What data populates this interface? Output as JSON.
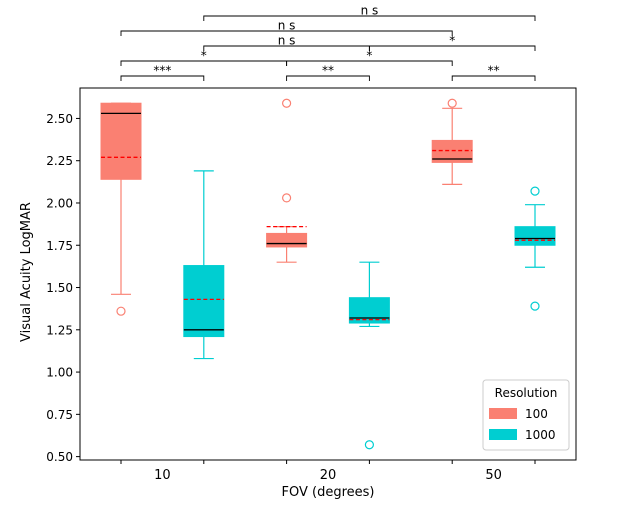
{
  "chart_data": {
    "type": "box",
    "title": "",
    "xlabel": "FOV (degrees)",
    "ylabel": "Visual Acuity LogMAR",
    "ylim": [
      0.48,
      2.68
    ],
    "yticks": [
      0.5,
      0.75,
      1.0,
      1.25,
      1.5,
      1.75,
      2.0,
      2.25,
      2.5
    ],
    "ytick_labels": [
      "0.50",
      "0.75",
      "1.00",
      "1.25",
      "1.50",
      "1.75",
      "2.00",
      "2.25",
      "2.50"
    ],
    "categories": [
      "10",
      "20",
      "50"
    ],
    "legend": {
      "title": "Resolution",
      "position": "bottom-right",
      "entries": [
        "100",
        "1000"
      ]
    },
    "colors": {
      "100": "#fa8072",
      "1000": "#00ced1",
      "median": "#000000",
      "mean": "#ff0000"
    },
    "boxes": [
      {
        "fov": "10",
        "resolution": "100",
        "whisker_low": 1.46,
        "q1": 2.14,
        "median": 2.53,
        "q3": 2.59,
        "whisker_high": 2.59,
        "mean": 2.27,
        "outliers": [
          1.36
        ]
      },
      {
        "fov": "10",
        "resolution": "1000",
        "whisker_low": 1.08,
        "q1": 1.21,
        "median": 1.25,
        "q3": 1.63,
        "whisker_high": 2.19,
        "mean": 1.43,
        "outliers": []
      },
      {
        "fov": "20",
        "resolution": "100",
        "whisker_low": 1.65,
        "q1": 1.74,
        "median": 1.76,
        "q3": 1.82,
        "whisker_high": 1.86,
        "mean": 1.86,
        "outliers": [
          2.59,
          2.03
        ]
      },
      {
        "fov": "20",
        "resolution": "1000",
        "whisker_low": 1.27,
        "q1": 1.29,
        "median": 1.32,
        "q3": 1.44,
        "whisker_high": 1.65,
        "mean": 1.31,
        "outliers": [
          0.57
        ]
      },
      {
        "fov": "50",
        "resolution": "100",
        "whisker_low": 2.11,
        "q1": 2.24,
        "median": 2.26,
        "q3": 2.37,
        "whisker_high": 2.56,
        "mean": 2.31,
        "outliers": [
          2.59
        ]
      },
      {
        "fov": "50",
        "resolution": "1000",
        "whisker_low": 1.62,
        "q1": 1.75,
        "median": 1.79,
        "q3": 1.86,
        "whisker_high": 1.99,
        "mean": 1.78,
        "outliers": [
          2.07,
          1.39
        ]
      }
    ],
    "significance": [
      {
        "from": 0,
        "to": 1,
        "level": 1,
        "label": "***"
      },
      {
        "from": 2,
        "to": 3,
        "level": 1,
        "label": "**"
      },
      {
        "from": 4,
        "to": 5,
        "level": 1,
        "label": "**"
      },
      {
        "from": 0,
        "to": 2,
        "level": 2,
        "label": "*"
      },
      {
        "from": 2,
        "to": 4,
        "level": 2,
        "label": "*"
      },
      {
        "from": 1,
        "to": 3,
        "level": 3,
        "label": "ns"
      },
      {
        "from": 3,
        "to": 5,
        "level": 3,
        "label": "*"
      },
      {
        "from": 0,
        "to": 4,
        "level": 4,
        "label": "ns"
      },
      {
        "from": 1,
        "to": 5,
        "level": 5,
        "label": "ns"
      }
    ]
  }
}
